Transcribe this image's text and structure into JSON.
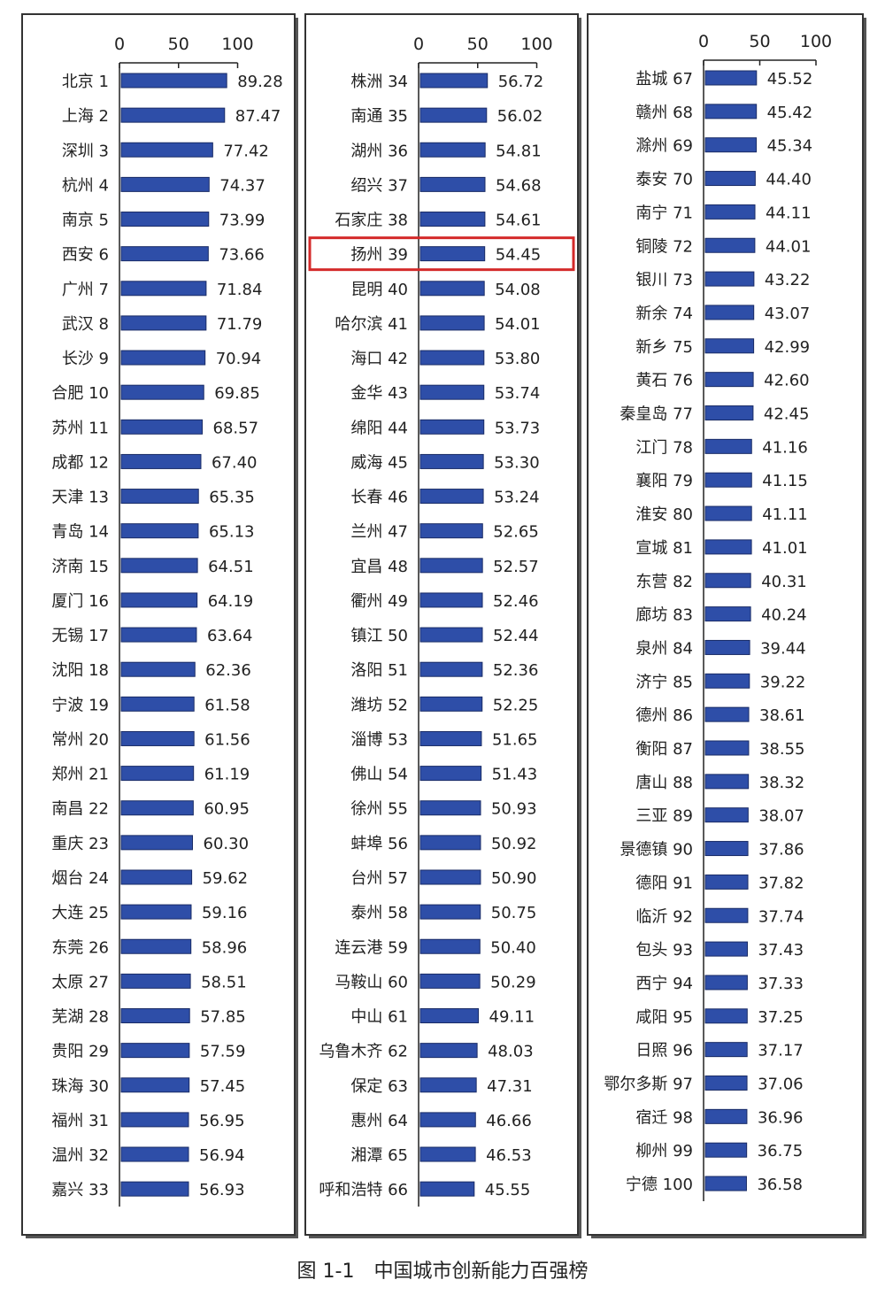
{
  "figure_caption": "图 1-1　中国城市创新能力百强榜",
  "chart_data": {
    "type": "bar",
    "orientation": "horizontal",
    "title": "中国城市创新能力百强榜",
    "xlim": [
      0,
      100
    ],
    "xticks": [
      "0",
      "50",
      "100"
    ],
    "bar_color": "#2e4ea8",
    "highlight_color": "#d42a2a",
    "highlight_category": "扬州 39",
    "categories": [
      "北京 1",
      "上海 2",
      "深圳 3",
      "杭州 4",
      "南京 5",
      "西安 6",
      "广州 7",
      "武汉 8",
      "长沙 9",
      "合肥 10",
      "苏州 11",
      "成都 12",
      "天津 13",
      "青岛 14",
      "济南 15",
      "厦门 16",
      "无锡 17",
      "沈阳 18",
      "宁波 19",
      "常州 20",
      "郑州 21",
      "南昌 22",
      "重庆 23",
      "烟台 24",
      "大连 25",
      "东莞 26",
      "太原 27",
      "芜湖 28",
      "贵阳 29",
      "珠海 30",
      "福州 31",
      "温州 32",
      "嘉兴 33",
      "株洲 34",
      "南通 35",
      "湖州 36",
      "绍兴 37",
      "石家庄 38",
      "扬州 39",
      "昆明 40",
      "哈尔滨 41",
      "海口 42",
      "金华 43",
      "绵阳 44",
      "威海 45",
      "长春 46",
      "兰州 47",
      "宜昌 48",
      "衢州 49",
      "镇江 50",
      "洛阳 51",
      "潍坊 52",
      "淄博 53",
      "佛山 54",
      "徐州 55",
      "蚌埠 56",
      "台州 57",
      "泰州 58",
      "连云港 59",
      "马鞍山 60",
      "中山 61",
      "乌鲁木齐 62",
      "保定 63",
      "惠州 64",
      "湘潭 65",
      "呼和浩特 66",
      "盐城 67",
      "赣州 68",
      "滁州 69",
      "泰安 70",
      "南宁 71",
      "铜陵 72",
      "银川 73",
      "新余 74",
      "新乡 75",
      "黄石 76",
      "秦皇岛 77",
      "江门 78",
      "襄阳 79",
      "淮安 80",
      "宣城 81",
      "东营 82",
      "廊坊 83",
      "泉州 84",
      "济宁 85",
      "德州 86",
      "衡阳 87",
      "唐山 88",
      "三亚 89",
      "景德镇 90",
      "德阳 91",
      "临沂 92",
      "包头 93",
      "西宁 94",
      "咸阳 95",
      "日照 96",
      "鄂尔多斯 97",
      "宿迁 98",
      "柳州 99",
      "宁德 100"
    ],
    "value_labels": [
      "89.28",
      "87.47",
      "77.42",
      "74.37",
      "73.99",
      "73.66",
      "71.84",
      "71.79",
      "70.94",
      "69.85",
      "68.57",
      "67.40",
      "65.35",
      "65.13",
      "64.51",
      "64.19",
      "63.64",
      "62.36",
      "61.58",
      "61.56",
      "61.19",
      "60.95",
      "60.30",
      "59.62",
      "59.16",
      "58.96",
      "58.51",
      "57.85",
      "57.59",
      "57.45",
      "56.95",
      "56.94",
      "56.93",
      "56.72",
      "56.02",
      "54.81",
      "54.68",
      "54.61",
      "54.45",
      "54.08",
      "54.01",
      "53.80",
      "53.74",
      "53.73",
      "53.30",
      "53.24",
      "52.65",
      "52.57",
      "52.46",
      "52.44",
      "52.36",
      "52.25",
      "51.65",
      "51.43",
      "50.93",
      "50.92",
      "50.90",
      "50.75",
      "50.40",
      "50.29",
      "49.11",
      "48.03",
      "47.31",
      "46.66",
      "46.53",
      "45.55",
      "45.52",
      "45.42",
      "45.34",
      "44.40",
      "44.11",
      "44.01",
      "43.22",
      "43.07",
      "42.99",
      "42.60",
      "42.45",
      "41.16",
      "41.15",
      "41.11",
      "41.01",
      "40.31",
      "40.24",
      "39.44",
      "39.22",
      "38.61",
      "38.55",
      "38.32",
      "38.07",
      "37.86",
      "37.82",
      "37.74",
      "37.43",
      "37.33",
      "37.25",
      "37.17",
      "37.06",
      "36.96",
      "36.75",
      "36.58"
    ],
    "values": [
      89.28,
      87.47,
      77.42,
      74.37,
      73.99,
      73.66,
      71.84,
      71.79,
      70.94,
      69.85,
      68.57,
      67.4,
      65.35,
      65.13,
      64.51,
      64.19,
      63.64,
      62.36,
      61.58,
      61.56,
      61.19,
      60.95,
      60.3,
      59.62,
      59.16,
      58.96,
      58.51,
      57.85,
      57.59,
      57.45,
      56.95,
      56.94,
      56.93,
      56.72,
      56.02,
      54.81,
      54.68,
      54.61,
      54.45,
      54.08,
      54.01,
      53.8,
      53.74,
      53.73,
      53.3,
      53.24,
      52.65,
      52.57,
      52.46,
      52.44,
      52.36,
      52.25,
      51.65,
      51.43,
      50.93,
      50.92,
      50.9,
      50.75,
      50.4,
      50.29,
      49.11,
      48.03,
      47.31,
      46.66,
      46.53,
      45.55,
      45.52,
      45.42,
      45.34,
      44.4,
      44.11,
      44.01,
      43.22,
      43.07,
      42.99,
      42.6,
      42.45,
      41.16,
      41.15,
      41.11,
      41.01,
      40.31,
      40.24,
      39.44,
      39.22,
      38.61,
      38.55,
      38.32,
      38.07,
      37.86,
      37.82,
      37.74,
      37.43,
      37.33,
      37.25,
      37.17,
      37.06,
      36.96,
      36.75,
      36.58
    ]
  }
}
